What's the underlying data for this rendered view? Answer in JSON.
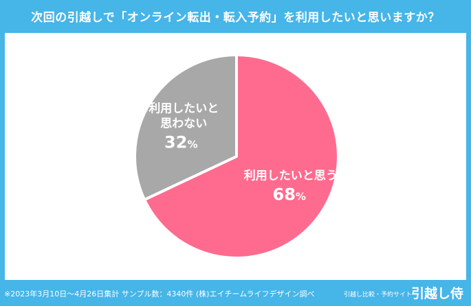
{
  "header": {
    "title": "次回の引越しで「オンライン転出・転入予約」を利用したいと思いますか？"
  },
  "chart_data": {
    "type": "pie",
    "slices": [
      {
        "label": "利用したいと思う",
        "value": 68,
        "value_label": "68",
        "color": "#ff6b8e"
      },
      {
        "label_lines": [
          "利用したいと",
          "思わない"
        ],
        "value": 32,
        "value_label": "32",
        "color": "#a8a8a8"
      }
    ],
    "percent_sign": "%"
  },
  "footer": {
    "note": "※2023年3月10日〜4月26日集計 サンプル数：4340件 (株)エイチームライフデザイン調べ",
    "brand_sub": "引越し比較・予約サイト",
    "brand_name": "引越し侍"
  }
}
